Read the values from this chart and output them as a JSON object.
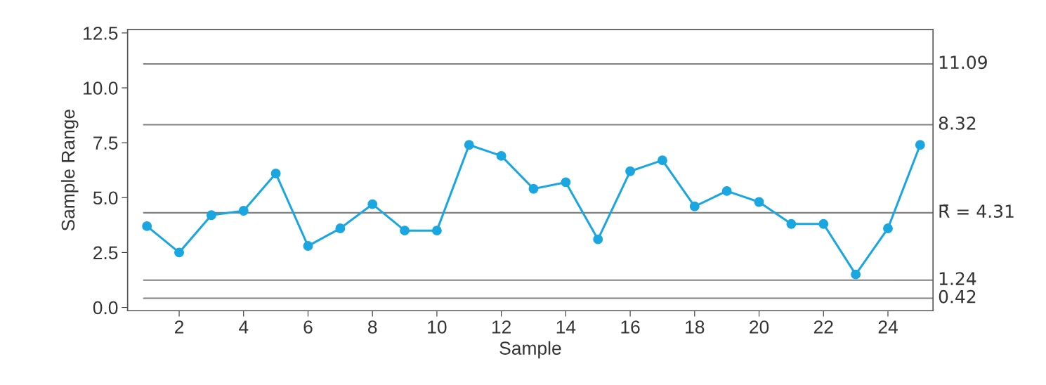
{
  "chart_data": {
    "type": "line",
    "xlabel": "Sample",
    "ylabel": "Sample Range",
    "x": [
      1,
      2,
      3,
      4,
      5,
      6,
      7,
      8,
      9,
      10,
      11,
      12,
      13,
      14,
      15,
      16,
      17,
      18,
      19,
      20,
      21,
      22,
      23,
      24,
      25
    ],
    "series": [
      {
        "color": "#1aa7e1",
        "values": [
          3.7,
          2.5,
          4.2,
          4.4,
          6.1,
          2.8,
          3.6,
          4.7,
          3.5,
          3.5,
          7.4,
          6.9,
          5.4,
          5.7,
          3.1,
          6.2,
          6.7,
          4.6,
          5.3,
          4.8,
          3.8,
          3.8,
          1.5,
          3.6,
          7.4
        ]
      }
    ],
    "marker": "circle",
    "line_style": "solid",
    "xlim": [
      0.4,
      25.4
    ],
    "xticks": [
      2,
      4,
      6,
      8,
      10,
      12,
      14,
      16,
      18,
      20,
      22,
      24
    ],
    "ylim": [
      -0.15,
      12.65
    ],
    "yticks": [
      {
        "value": 0,
        "label": "0.0"
      },
      {
        "value": 2.5,
        "label": "2.5"
      },
      {
        "value": 5,
        "label": "5.0"
      },
      {
        "value": 7.5,
        "label": "7.5"
      },
      {
        "value": 10,
        "label": "10.0"
      },
      {
        "value": 12.5,
        "label": "12.5"
      }
    ],
    "ref_lines": [
      {
        "axis": "y",
        "value": 11.09,
        "label": "11.09",
        "color": "#808080"
      },
      {
        "axis": "y",
        "value": 8.32,
        "label": "8.32",
        "color": "#808080"
      },
      {
        "axis": "y",
        "value": 4.31,
        "label": "R̄ = 4.31",
        "color": "#808080"
      },
      {
        "axis": "y",
        "value": 1.24,
        "label": "1.24",
        "color": "#808080"
      },
      {
        "axis": "y",
        "value": 0.42,
        "label": "0.42",
        "color": "#808080"
      }
    ],
    "grid": false,
    "legend": false
  }
}
